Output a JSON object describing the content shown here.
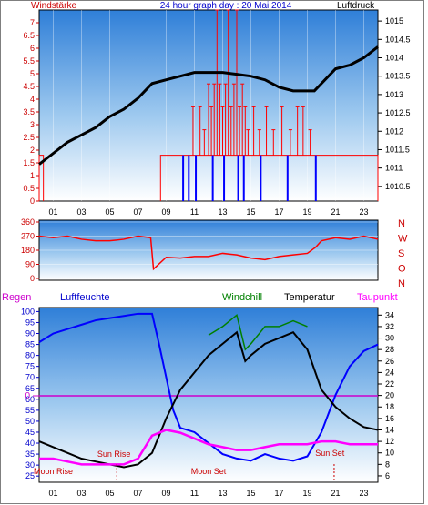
{
  "header": {
    "wind_label": "Windstärke",
    "title": "24 hour graph day : 20 Mai 2014",
    "pressure_label": "Luftdruck"
  },
  "bottom_header": {
    "rain_label": "Regen",
    "humidity_label": "Luftfeuchte",
    "windchill_label": "Windchill",
    "temperature_label": "Temperatur",
    "dewpoint_label": "Taupunkt"
  },
  "colors": {
    "wind": "#ff0000",
    "gust": "#0000ff",
    "pressure": "#000000",
    "humidity": "#0000ff",
    "windchill": "#008000",
    "temperature": "#000000",
    "dewpoint": "#ff00ff",
    "rain": "#cc0000",
    "annotation": "#cc0000"
  },
  "chart_data": [
    {
      "type": "line",
      "name": "wind-pressure",
      "x_ticks": [
        "01",
        "03",
        "05",
        "07",
        "09",
        "11",
        "13",
        "15",
        "17",
        "19",
        "21",
        "23"
      ],
      "left_axis": {
        "ticks": [
          "0",
          "0.5",
          "1",
          "1.5",
          "2",
          "2.5",
          "3",
          "3.5",
          "4",
          "4.5",
          "5",
          "5.5",
          "6",
          "6.5",
          "7"
        ],
        "ylim": [
          0,
          7.5
        ]
      },
      "right_axis": {
        "ticks": [
          "1010.5",
          "1011",
          "1011.5",
          "1012",
          "1012.5",
          "1013",
          "1013.5",
          "1014",
          "1014.5",
          "1015"
        ],
        "ylim": [
          1010.1,
          1015.3
        ]
      },
      "pressure": {
        "x": [
          0,
          1,
          2,
          3,
          4,
          5,
          6,
          7,
          8,
          9,
          10,
          11,
          12,
          13,
          14,
          15,
          16,
          17,
          18,
          19,
          19.5,
          20,
          21,
          22,
          23,
          24
        ],
        "y": [
          1011.1,
          1011.4,
          1011.7,
          1011.9,
          1012.1,
          1012.4,
          1012.6,
          1012.9,
          1013.3,
          1013.4,
          1013.5,
          1013.6,
          1013.6,
          1013.6,
          1013.55,
          1013.5,
          1013.4,
          1013.2,
          1013.1,
          1013.1,
          1013.1,
          1013.3,
          1013.7,
          1013.8,
          1014.0,
          1014.3
        ]
      },
      "wind_levels": [
        {
          "from": 0,
          "to": 0.3,
          "value": 1.8
        },
        {
          "from": 8.6,
          "to": 24,
          "value": 1.8
        }
      ],
      "wind_spikes": [
        {
          "x": 10.9,
          "value": 3.7
        },
        {
          "x": 11.4,
          "value": 3.7
        },
        {
          "x": 11.7,
          "value": 2.8
        },
        {
          "x": 12.0,
          "value": 4.6
        },
        {
          "x": 12.2,
          "value": 3.7
        },
        {
          "x": 12.4,
          "value": 4.6
        },
        {
          "x": 12.6,
          "value": 7.5
        },
        {
          "x": 12.8,
          "value": 4.6
        },
        {
          "x": 13.0,
          "value": 3.7
        },
        {
          "x": 13.2,
          "value": 4.6
        },
        {
          "x": 13.4,
          "value": 7.5
        },
        {
          "x": 13.6,
          "value": 3.7
        },
        {
          "x": 13.8,
          "value": 4.6
        },
        {
          "x": 14.0,
          "value": 7.5
        },
        {
          "x": 14.2,
          "value": 3.7
        },
        {
          "x": 14.4,
          "value": 4.6
        },
        {
          "x": 14.6,
          "value": 3.7
        },
        {
          "x": 14.8,
          "value": 2.8
        },
        {
          "x": 15.2,
          "value": 3.7
        },
        {
          "x": 15.6,
          "value": 2.8
        },
        {
          "x": 16.1,
          "value": 3.7
        },
        {
          "x": 16.6,
          "value": 2.8
        },
        {
          "x": 17.2,
          "value": 3.7
        },
        {
          "x": 17.8,
          "value": 2.8
        },
        {
          "x": 18.3,
          "value": 3.7
        },
        {
          "x": 18.7,
          "value": 3.7
        },
        {
          "x": 19.2,
          "value": 2.8
        }
      ],
      "gust_marks": [
        10.2,
        10.6,
        11.1,
        12.3,
        13.1,
        14.1,
        14.5,
        15.7,
        17.6,
        19.6
      ]
    },
    {
      "type": "line",
      "name": "wind-direction",
      "y_ticks": [
        "360",
        "270",
        "180",
        "90",
        "0"
      ],
      "ylim": [
        0,
        360
      ],
      "compass_labels": [
        "N",
        "W",
        "S",
        "O",
        "N"
      ],
      "x": [
        0,
        1,
        2,
        3,
        4,
        5,
        6,
        7,
        7.9,
        8.1,
        9,
        10,
        11,
        12,
        13,
        14,
        15,
        16,
        17,
        18,
        19,
        19.6,
        20,
        21,
        22,
        23,
        24
      ],
      "y": [
        270,
        260,
        270,
        250,
        240,
        240,
        250,
        270,
        260,
        60,
        135,
        130,
        140,
        140,
        160,
        150,
        130,
        120,
        140,
        150,
        160,
        200,
        240,
        260,
        250,
        270,
        250
      ]
    },
    {
      "type": "line",
      "name": "humidity-temperature",
      "left_axis": {
        "ticks": [
          "25",
          "30",
          "35",
          "40",
          "45",
          "50",
          "55",
          "60",
          "65",
          "70",
          "75",
          "80",
          "85",
          "90",
          "95",
          "100"
        ],
        "ylim": [
          23,
          101
        ]
      },
      "right_axis": {
        "ticks": [
          "6",
          "8",
          "10",
          "12",
          "14",
          "16",
          "18",
          "20",
          "22",
          "24",
          "26",
          "28",
          "30",
          "32",
          "34"
        ],
        "ylim": [
          5.2,
          35
        ]
      },
      "rain_baseline_label": "0",
      "series": [
        {
          "name": "Luftfeuchte",
          "x": [
            0,
            1,
            2,
            3,
            4,
            5,
            6,
            7,
            8,
            8.5,
            9,
            9.5,
            10,
            11,
            12,
            13,
            14,
            15,
            16,
            17,
            18,
            19,
            20,
            21,
            22,
            23,
            24
          ],
          "y": [
            86,
            90,
            92,
            94,
            96,
            97,
            98,
            99,
            99,
            85,
            70,
            55,
            47,
            45,
            40,
            35,
            33,
            32,
            35,
            33,
            32,
            34,
            45,
            62,
            75,
            82,
            85
          ]
        },
        {
          "name": "Windchill",
          "x": [
            12,
            13,
            14,
            14.6,
            15,
            16,
            17,
            18,
            19
          ],
          "y": [
            30.5,
            32,
            34,
            28,
            29,
            32,
            32,
            33,
            32
          ]
        },
        {
          "name": "Temperatur",
          "x": [
            0,
            1,
            2,
            3,
            4,
            5,
            6,
            7,
            8,
            9,
            10,
            11,
            12,
            13,
            14,
            14.6,
            15,
            16,
            17,
            18,
            19,
            20,
            21,
            22,
            23,
            24
          ],
          "y": [
            12,
            11,
            10,
            9,
            8.5,
            8,
            7.5,
            8,
            10,
            16,
            21,
            24,
            27,
            29,
            31,
            26,
            27,
            29,
            30,
            31,
            28,
            21,
            18,
            16,
            14.5,
            14
          ]
        },
        {
          "name": "Taupunkt",
          "x": [
            0,
            1,
            2,
            3,
            4,
            5,
            6,
            7,
            8,
            9,
            10,
            11,
            12,
            13,
            14,
            15,
            16,
            17,
            18,
            19,
            20,
            21,
            22,
            23,
            24
          ],
          "y": [
            9,
            9,
            8.5,
            8,
            8,
            8,
            8,
            9,
            13,
            14,
            13.5,
            12.5,
            11.5,
            11,
            10.5,
            10.5,
            11,
            11.5,
            11.5,
            11.5,
            12,
            12,
            11.5,
            11.5,
            11.5
          ]
        }
      ],
      "annotations": [
        {
          "text": "Sun Rise",
          "x": 5.3
        },
        {
          "text": "Moon Rise",
          "x": 1.0
        },
        {
          "text": "Moon Set",
          "x": 12.0
        },
        {
          "text": "Sun Set",
          "x": 20.6
        }
      ]
    }
  ]
}
